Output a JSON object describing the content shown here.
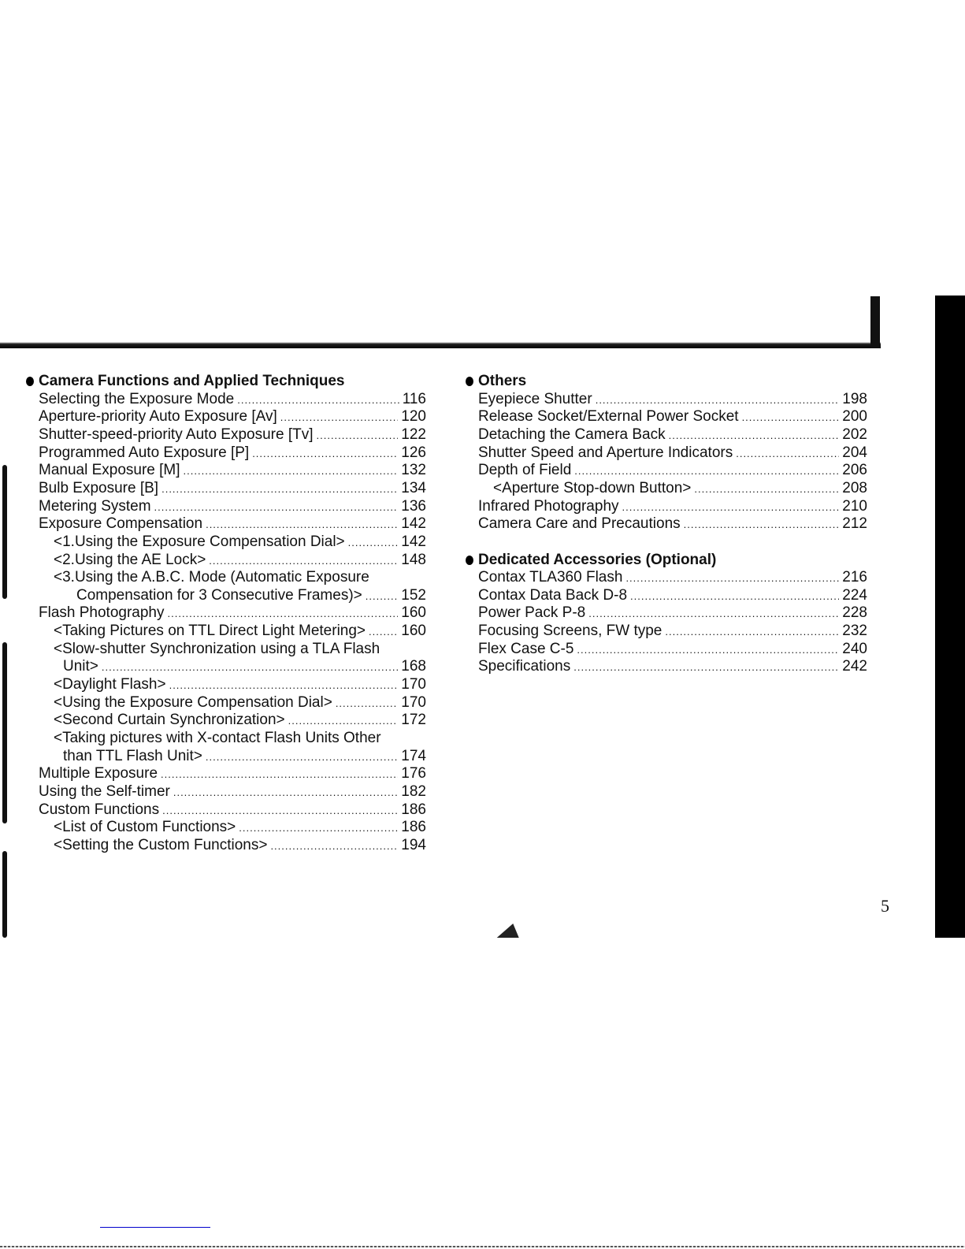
{
  "page_number": "5",
  "left_column": {
    "heading": "Camera Functions and Applied Techniques",
    "entries": [
      {
        "text": "Selecting the Exposure Mode",
        "page": "116",
        "level": "0"
      },
      {
        "text": "Aperture-priority Auto Exposure [Av]",
        "page": "120",
        "level": "0"
      },
      {
        "text": "Shutter-speed-priority Auto Exposure [Tv]",
        "page": "122",
        "level": "0"
      },
      {
        "text": "Programmed Auto Exposure [P]",
        "page": "126",
        "level": "0"
      },
      {
        "text": "Manual Exposure [M]",
        "page": "132",
        "level": "0"
      },
      {
        "text": "Bulb Exposure [B]",
        "page": "134",
        "level": "0"
      },
      {
        "text": "Metering System",
        "page": "136",
        "level": "0"
      },
      {
        "text": "Exposure Compensation",
        "page": "142",
        "level": "0"
      },
      {
        "text": "<1.Using the Exposure Compensation Dial>",
        "page": "142",
        "level": "1"
      },
      {
        "text": "<2.Using the AE Lock>",
        "page": "148",
        "level": "1"
      },
      {
        "text": "<3.Using the A.B.C. Mode (Automatic Exposure",
        "page": "",
        "level": "1"
      },
      {
        "text": "Compensation for 3 Consecutive Frames)>",
        "page": "152",
        "level": "2"
      },
      {
        "text": "Flash Photography",
        "page": "160",
        "level": "0"
      },
      {
        "text": "<Taking Pictures on TTL Direct Light Metering>",
        "page": "160",
        "level": "1"
      },
      {
        "text": "<Slow-shutter Synchronization using a TLA Flash",
        "page": "",
        "level": "1"
      },
      {
        "text": "Unit>",
        "page": "168",
        "level": "1w"
      },
      {
        "text": "<Daylight Flash>",
        "page": "170",
        "level": "1"
      },
      {
        "text": "<Using the Exposure Compensation Dial>",
        "page": "170",
        "level": "1"
      },
      {
        "text": "<Second Curtain Synchronization>",
        "page": "172",
        "level": "1"
      },
      {
        "text": "<Taking pictures with X-contact Flash Units Other",
        "page": "",
        "level": "1"
      },
      {
        "text": "than TTL Flash Unit>",
        "page": "174",
        "level": "1w"
      },
      {
        "text": "Multiple Exposure",
        "page": "176",
        "level": "0"
      },
      {
        "text": "Using the Self-timer",
        "page": "182",
        "level": "0"
      },
      {
        "text": "Custom Functions",
        "page": "186",
        "level": "0"
      },
      {
        "text": "<List of Custom Functions>",
        "page": "186",
        "level": "1"
      },
      {
        "text": "<Setting the Custom Functions>",
        "page": "194",
        "level": "1"
      }
    ]
  },
  "right_column": {
    "sections": [
      {
        "heading": "Others",
        "entries": [
          {
            "text": "Eyepiece Shutter",
            "page": "198",
            "level": "0"
          },
          {
            "text": "Release Socket/External Power Socket",
            "page": "200",
            "level": "0"
          },
          {
            "text": "Detaching the Camera Back",
            "page": "202",
            "level": "0"
          },
          {
            "text": "Shutter Speed and Aperture Indicators",
            "page": "204",
            "level": "0"
          },
          {
            "text": "Depth of Field",
            "page": "206",
            "level": "0"
          },
          {
            "text": "<Aperture Stop-down Button>",
            "page": "208",
            "level": "1"
          },
          {
            "text": "Infrared Photography",
            "page": "210",
            "level": "0"
          },
          {
            "text": "Camera Care and Precautions",
            "page": "212",
            "level": "0"
          }
        ]
      },
      {
        "heading": "Dedicated Accessories (Optional)",
        "entries": [
          {
            "text": "Contax TLA360 Flash",
            "page": "216",
            "level": "0"
          },
          {
            "text": "Contax Data Back D-8",
            "page": "224",
            "level": "0"
          },
          {
            "text": "Power Pack P-8",
            "page": "228",
            "level": "0"
          },
          {
            "text": "Focusing Screens, FW type",
            "page": "232",
            "level": "0"
          },
          {
            "text": "Flex Case C-5",
            "page": "240",
            "level": "0"
          },
          {
            "text": "Specifications",
            "page": "242",
            "level": "0"
          }
        ]
      }
    ]
  }
}
